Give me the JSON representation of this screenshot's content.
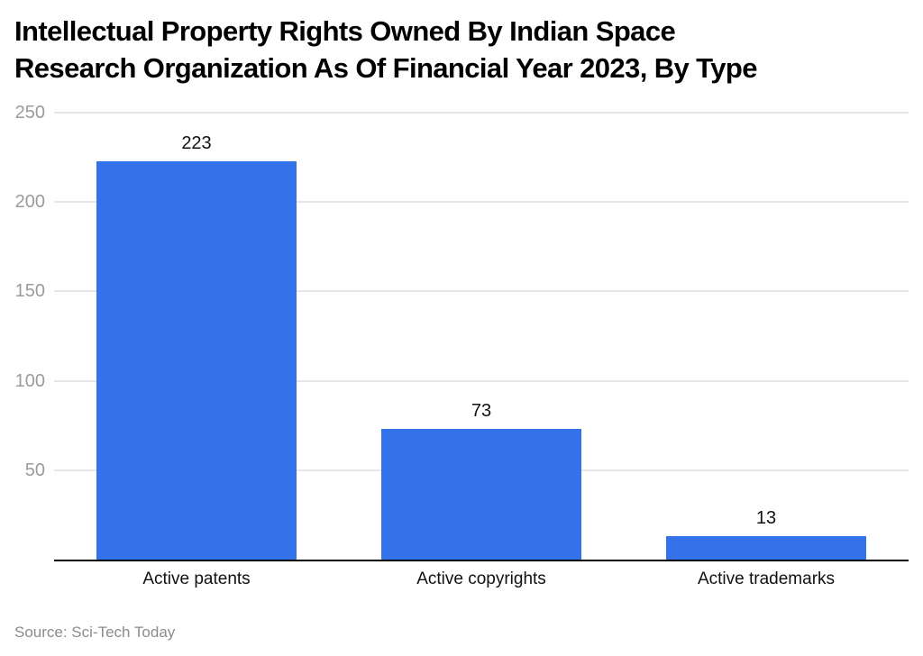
{
  "header": {
    "title_line1": "Intellectual Property Rights Owned By Indian Space",
    "title_line2": "Research Organization As Of Financial Year 2023, By Type"
  },
  "footer": {
    "source": "Source: Sci-Tech Today"
  },
  "colors": {
    "bar": "#3372E8",
    "gridline": "#E6E6E6",
    "axis_line": "#000000",
    "tick_label": "#9B9B9B",
    "value_label": "#111111",
    "category_label": "#111111",
    "source_text": "#8C8C8C",
    "background": "#FFFFFF",
    "title_text": "#000000"
  },
  "chart_data": {
    "type": "bar",
    "title": "Intellectual Property Rights Owned By Indian Space Research Organization As Of Financial Year 2023, By Type",
    "categories": [
      "Active patents",
      "Active copyrights",
      "Active trademarks"
    ],
    "values": [
      223,
      73,
      13
    ],
    "value_labels": [
      "223",
      "73",
      "13"
    ],
    "xlabel": "",
    "ylabel": "",
    "yticks": [
      50,
      100,
      150,
      200,
      250
    ],
    "ytick_labels": [
      "50",
      "100",
      "150",
      "200",
      "250"
    ],
    "ylim": [
      0,
      250
    ],
    "grid": true,
    "legend": false,
    "source": "Source: Sci-Tech Today"
  }
}
